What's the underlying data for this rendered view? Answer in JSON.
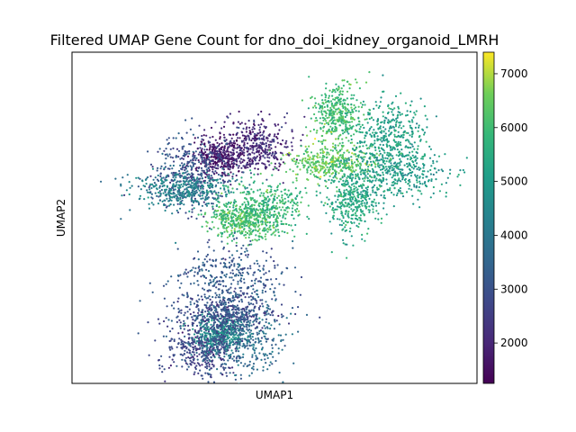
{
  "chart_data": {
    "type": "scatter",
    "title": "Filtered UMAP Gene Count for dno_doi_kidney_organoid_LMRH",
    "xlabel": "UMAP1",
    "ylabel": "UMAP2",
    "x_ticks_shown": false,
    "y_ticks_shown": false,
    "grid": false,
    "colorbar": {
      "colormap": "viridis",
      "range": [
        1250,
        7400
      ],
      "ticks": [
        2000,
        3000,
        4000,
        5000,
        6000,
        7000
      ],
      "tick_labels": [
        "2000",
        "3000",
        "4000",
        "5000",
        "6000",
        "7000"
      ],
      "position": "right"
    },
    "series": [
      {
        "x": 2.0,
        "y": 5.2,
        "value": 1700
      },
      {
        "x": 3.0,
        "y": 5.6,
        "value": 2100
      },
      {
        "x": 1.2,
        "y": 4.6,
        "value": 3000
      },
      {
        "x": 1.0,
        "y": 4.0,
        "value": 4300
      },
      {
        "x": 5.2,
        "y": 6.8,
        "value": 6000
      },
      {
        "x": 6.6,
        "y": 6.0,
        "value": 5200
      },
      {
        "x": 5.0,
        "y": 5.0,
        "value": 6400
      },
      {
        "x": 6.8,
        "y": 4.6,
        "value": 5000
      },
      {
        "x": 5.6,
        "y": 3.7,
        "value": 5400
      },
      {
        "x": 2.7,
        "y": 2.9,
        "value": 6200
      },
      {
        "x": 3.2,
        "y": 3.4,
        "value": 5800
      },
      {
        "x": 2.3,
        "y": 0.8,
        "value": 3200
      },
      {
        "x": 2.0,
        "y": -1.2,
        "value": 4700
      },
      {
        "x": 1.5,
        "y": -1.8,
        "value": 2700
      },
      {
        "x": 2.6,
        "y": -1.4,
        "value": 3700
      },
      {
        "x": 2.2,
        "y": -0.5,
        "value": 2900
      }
    ]
  }
}
